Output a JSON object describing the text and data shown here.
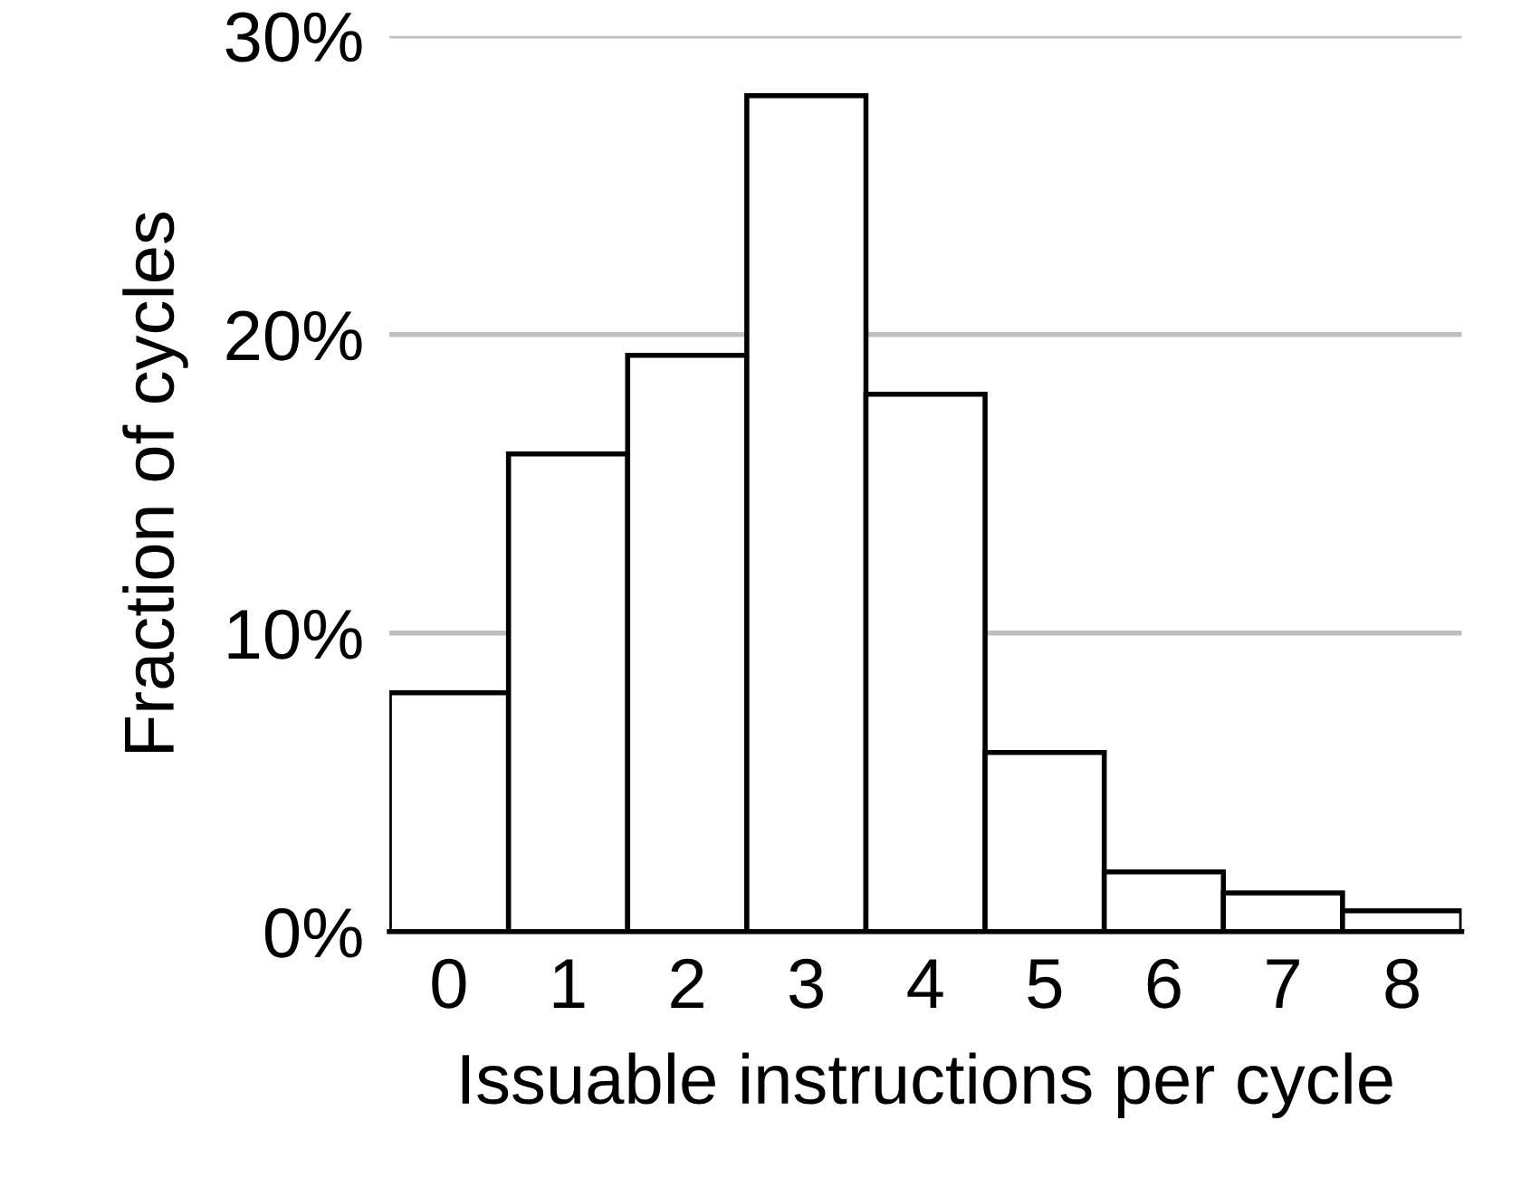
{
  "chart_data": {
    "type": "bar",
    "xlabel": "Issuable instructions per cycle",
    "ylabel": "Fraction of cycles",
    "categories": [
      "0",
      "1",
      "2",
      "3",
      "4",
      "5",
      "6",
      "7",
      "8"
    ],
    "values": [
      8,
      16,
      19.3,
      28,
      18,
      6,
      2,
      1.3,
      0.7
    ],
    "color": "#ffffff",
    "ylim": [
      0,
      30
    ],
    "yticks": [
      {
        "value": 0,
        "label": "0%"
      },
      {
        "value": 10,
        "label": "10%"
      },
      {
        "value": 20,
        "label": "20%"
      },
      {
        "value": 30,
        "label": "30%"
      }
    ],
    "grid": "y"
  }
}
